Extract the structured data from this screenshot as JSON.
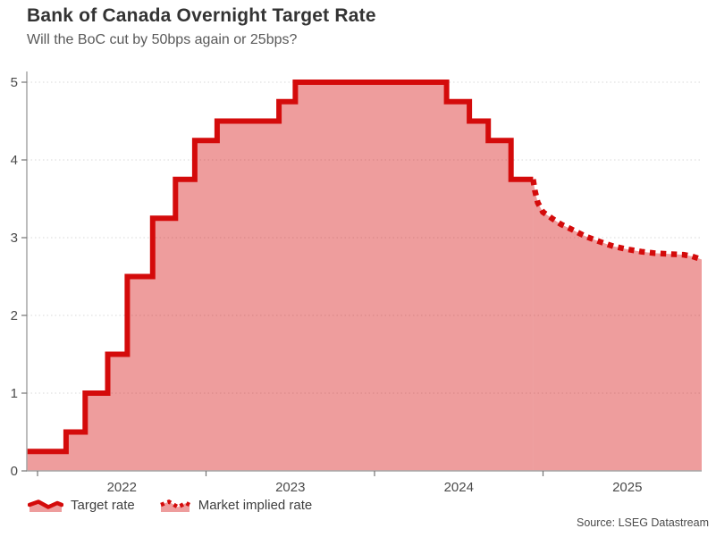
{
  "page": {
    "title": "Bank of Canada Overnight Target Rate",
    "subtitle": "Will the BoC cut by 50bps again or 25bps?",
    "source": "Source: LSEG Datastream"
  },
  "legend": {
    "items": [
      {
        "label": "Target rate",
        "style": "solid"
      },
      {
        "label": "Market implied rate",
        "style": "dotted"
      }
    ]
  },
  "colors": {
    "line": "#d40b0b",
    "fill": "#d40b0b",
    "fill_opacity": 0.4,
    "axis": "#a6a6a6",
    "tick": "#737373",
    "grid": "#e0e0e0",
    "tick_label": "#4a4a4a",
    "title": "#333333",
    "subtitle": "#595959"
  },
  "chart_data": {
    "type": "area",
    "title": "Bank of Canada Overnight Target Rate",
    "subtitle": "Will the BoC cut by 50bps again or 25bps?",
    "xlabel": "",
    "ylabel": "",
    "unit": "percent",
    "ylim": [
      0,
      5
    ],
    "yticks": [
      0,
      1,
      2,
      3,
      4,
      5
    ],
    "xtick_years": [
      2022,
      2023,
      2024,
      2025
    ],
    "x_domain": [
      "2021-12-08",
      "2025-12-14"
    ],
    "grid": "horizontal dotted gridlines at integer values",
    "legend_position": "bottom-left",
    "source": "Source: LSEG Datastream",
    "series": [
      {
        "name": "Target rate",
        "style": "solid",
        "step": true,
        "points": [
          [
            "2021-12-08",
            0.25
          ],
          [
            "2022-03-02",
            0.5
          ],
          [
            "2022-04-13",
            1.0
          ],
          [
            "2022-06-01",
            1.5
          ],
          [
            "2022-07-13",
            2.5
          ],
          [
            "2022-09-07",
            3.25
          ],
          [
            "2022-10-26",
            3.75
          ],
          [
            "2022-12-07",
            4.25
          ],
          [
            "2023-01-25",
            4.5
          ],
          [
            "2023-06-07",
            4.75
          ],
          [
            "2023-07-12",
            5.0
          ],
          [
            "2024-06-05",
            4.75
          ],
          [
            "2024-07-24",
            4.5
          ],
          [
            "2024-09-04",
            4.25
          ],
          [
            "2024-10-23",
            3.75
          ],
          [
            "2024-12-10",
            3.75
          ]
        ]
      },
      {
        "name": "Market implied rate",
        "style": "dotted",
        "step": false,
        "points": [
          [
            "2024-12-10",
            3.75
          ],
          [
            "2024-12-14",
            3.6
          ],
          [
            "2024-12-20",
            3.45
          ],
          [
            "2024-12-31",
            3.33
          ],
          [
            "2025-01-20",
            3.25
          ],
          [
            "2025-02-10",
            3.17
          ],
          [
            "2025-03-01",
            3.11
          ],
          [
            "2025-04-01",
            3.02
          ],
          [
            "2025-05-01",
            2.95
          ],
          [
            "2025-06-01",
            2.89
          ],
          [
            "2025-07-01",
            2.85
          ],
          [
            "2025-08-01",
            2.82
          ],
          [
            "2025-09-01",
            2.8
          ],
          [
            "2025-10-01",
            2.79
          ],
          [
            "2025-11-01",
            2.78
          ],
          [
            "2025-11-20",
            2.76
          ],
          [
            "2025-12-10",
            2.72
          ]
        ]
      }
    ]
  }
}
